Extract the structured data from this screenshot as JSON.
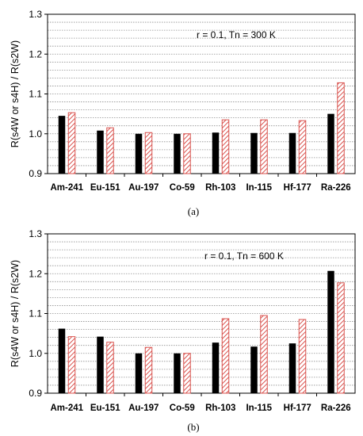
{
  "colors": {
    "series1": "#000000",
    "series2_hatch": "#d9534f",
    "gridline": "#909090"
  },
  "chart_data": [
    {
      "type": "bar",
      "panel_label": "(a)",
      "annotation": "r = 0.1, Tn = 300 K",
      "ylabel": "R(s4W or s4H) / R(s2W)",
      "xlabel": "",
      "ylim": [
        0.9,
        1.3
      ],
      "yticks": [
        "0.9",
        "1.0",
        "1.1",
        "1.2",
        "1.3"
      ],
      "grid": true,
      "categories": [
        "Am-241",
        "Eu-151",
        "Au-197",
        "Co-59",
        "Rh-103",
        "In-115",
        "Hf-177",
        "Ra-226"
      ],
      "series": [
        {
          "values": [
            1.045,
            1.008,
            1.0,
            1.0,
            1.003,
            1.002,
            1.002,
            1.05
          ]
        },
        {
          "values": [
            1.053,
            1.015,
            1.003,
            1.0,
            1.035,
            1.035,
            1.033,
            1.128
          ]
        }
      ]
    },
    {
      "type": "bar",
      "panel_label": "(b)",
      "annotation": "r = 0.1, Tn = 600 K",
      "ylabel": "R(s4W or s4H) / R(s2W)",
      "xlabel": "",
      "ylim": [
        0.9,
        1.3
      ],
      "yticks": [
        "0.9",
        "1.0",
        "1.1",
        "1.2",
        "1.3"
      ],
      "grid": true,
      "categories": [
        "Am-241",
        "Eu-151",
        "Au-197",
        "Co-59",
        "Rh-103",
        "In-115",
        "Hf-177",
        "Ra-226"
      ],
      "series": [
        {
          "values": [
            1.062,
            1.042,
            1.0,
            1.0,
            1.027,
            1.017,
            1.025,
            1.207
          ]
        },
        {
          "values": [
            1.042,
            1.028,
            1.015,
            1.0,
            1.087,
            1.095,
            1.085,
            1.177
          ]
        }
      ]
    }
  ]
}
